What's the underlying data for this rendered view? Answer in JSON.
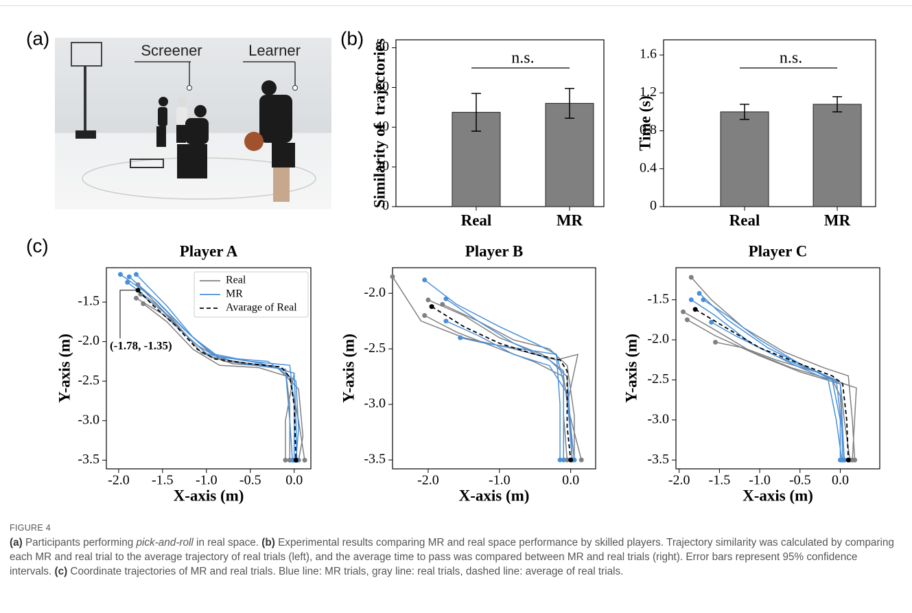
{
  "panel_labels": [
    "(a)",
    "(b)",
    "(c)"
  ],
  "photo": {
    "labels": [
      "Screener",
      "Learner"
    ]
  },
  "chart_data": [
    {
      "type": "bar",
      "ylabel": "Similarity of  trajectories",
      "categories": [
        "Real",
        "MR"
      ],
      "values": [
        47.5,
        52
      ],
      "errors": [
        9.5,
        7.5
      ],
      "color": "#808080",
      "ylim": [
        0,
        84
      ],
      "yticks": [
        0,
        20,
        40,
        60,
        80
      ],
      "annotation": "n.s."
    },
    {
      "type": "bar",
      "ylabel": "Time (s)",
      "categories": [
        "Real",
        "MR"
      ],
      "values": [
        1.0,
        1.08
      ],
      "errors": [
        0.08,
        0.08
      ],
      "color": "#808080",
      "ylim": [
        0,
        1.76
      ],
      "yticks": [
        0,
        0.4,
        0.8,
        1.2,
        1.6
      ],
      "annotation": "n.s."
    },
    {
      "type": "line",
      "title": "Player A",
      "xlabel": "X-axis (m)",
      "ylabel": "Y-axis (m)",
      "xlim": [
        -2.14,
        0.19
      ],
      "ylim": [
        -3.61,
        -1.065
      ],
      "xticks": [
        {
          "value": -2,
          "label": "-2.0"
        },
        -1.5,
        {
          "value": -1,
          "label": "-1.0"
        },
        -0.5,
        {
          "value": 0,
          "label": "0.0"
        }
      ],
      "yticks": [
        -1.5,
        {
          "value": -2,
          "label": "-2.0"
        },
        -2.5,
        {
          "value": -3,
          "label": "-3.0"
        },
        -3.5
      ],
      "legend": true,
      "legend_position": "upper right",
      "annotation": "(-1.78, -1.35)",
      "series": [
        {
          "name": "Real",
          "color": "#808080",
          "line_style": "solid",
          "trials": [
            {
              "x": [
                -1.78,
                -1.5,
                -1.2,
                -0.95,
                -0.5,
                -0.1,
                -0.05,
                -0.05
              ],
              "y": [
                -1.28,
                -1.6,
                -1.95,
                -2.2,
                -2.28,
                -2.35,
                -2.8,
                -3.5
              ]
            },
            {
              "x": [
                -1.72,
                -1.45,
                -1.15,
                -0.85,
                -0.4,
                -0.05,
                0.05,
                0.12
              ],
              "y": [
                -1.52,
                -1.75,
                -2.1,
                -2.3,
                -2.33,
                -2.45,
                -3.0,
                -3.5
              ]
            },
            {
              "x": [
                -1.8,
                -1.5,
                -1.1,
                -0.8,
                -0.3,
                0.0,
                -0.1,
                -0.1
              ],
              "y": [
                -1.45,
                -1.65,
                -2.05,
                -2.25,
                -2.3,
                -2.4,
                -3.0,
                -3.5
              ]
            },
            {
              "x": [
                -1.75,
                -1.4,
                -1.05,
                -0.7,
                -0.2,
                0.05,
                0.1,
                0.05
              ],
              "y": [
                -1.4,
                -1.7,
                -2.15,
                -2.28,
                -2.32,
                -2.6,
                -3.2,
                -3.5
              ]
            }
          ]
        },
        {
          "name": "MR",
          "color": "#4a90d9",
          "line_style": "solid",
          "trials": [
            {
              "x": [
                -1.98,
                -1.6,
                -1.25,
                -0.95,
                -0.5,
                -0.05,
                0.0,
                0.0
              ],
              "y": [
                -1.15,
                -1.45,
                -1.85,
                -2.15,
                -2.25,
                -2.3,
                -2.8,
                -3.5
              ]
            },
            {
              "x": [
                -1.88,
                -1.55,
                -1.2,
                -0.9,
                -0.4,
                0.0,
                0.02,
                0.03
              ],
              "y": [
                -1.18,
                -1.5,
                -1.9,
                -2.18,
                -2.27,
                -2.4,
                -3.0,
                -3.5
              ]
            },
            {
              "x": [
                -1.8,
                -1.45,
                -1.15,
                -0.85,
                -0.3,
                0.02,
                0.05,
                0.02
              ],
              "y": [
                -1.15,
                -1.55,
                -1.95,
                -2.2,
                -2.25,
                -2.5,
                -3.1,
                -3.5
              ]
            },
            {
              "x": [
                -1.9,
                -1.55,
                -1.3,
                -1.0,
                -0.6,
                -0.1,
                -0.05,
                -0.02
              ],
              "y": [
                -1.25,
                -1.55,
                -1.85,
                -2.15,
                -2.28,
                -2.35,
                -3.0,
                -3.5
              ]
            }
          ]
        },
        {
          "name": "Avarage of Real",
          "color": "#000000",
          "line_style": "dashed",
          "trials": [
            {
              "x": [
                -1.78,
                -1.6,
                -1.35,
                -1.1,
                -0.9,
                -0.5,
                -0.15,
                -0.05,
                0.0,
                0.02
              ],
              "y": [
                -1.35,
                -1.55,
                -1.8,
                -2.1,
                -2.22,
                -2.28,
                -2.32,
                -2.45,
                -2.8,
                -3.5
              ]
            }
          ]
        }
      ]
    },
    {
      "type": "line",
      "title": "Player B",
      "xlabel": "X-axis (m)",
      "ylabel": "Y-axis (m)",
      "xlim": [
        -2.5,
        0.35
      ],
      "ylim": [
        -3.58,
        -1.77
      ],
      "xticks": [
        {
          "value": -2,
          "label": "-2.0"
        },
        {
          "value": -1,
          "label": "-1.0"
        },
        {
          "value": 0,
          "label": "0.0"
        }
      ],
      "yticks": [
        {
          "value": -2,
          "label": "-2.0"
        },
        -2.5,
        {
          "value": -3,
          "label": "-3.0"
        },
        -3.5
      ],
      "legend": false,
      "series": [
        {
          "name": "Real",
          "color": "#808080",
          "line_style": "solid",
          "trials": [
            {
              "x": [
                -2.5,
                -2.1,
                -1.5,
                -0.8,
                -0.2,
                0.1,
                -0.05,
                0.15
              ],
              "y": [
                -1.85,
                -2.25,
                -2.4,
                -2.5,
                -2.6,
                -2.55,
                -3.0,
                -3.5
              ]
            },
            {
              "x": [
                -2.0,
                -1.5,
                -1.0,
                -0.4,
                -0.1,
                -0.1,
                -0.05
              ],
              "y": [
                -2.06,
                -2.2,
                -2.4,
                -2.55,
                -2.7,
                -3.1,
                -3.5
              ]
            },
            {
              "x": [
                -2.05,
                -1.6,
                -1.0,
                -0.5,
                -0.1,
                0.0,
                0.02
              ],
              "y": [
                -2.2,
                -2.35,
                -2.5,
                -2.62,
                -2.75,
                -3.2,
                -3.5
              ]
            },
            {
              "x": [
                -1.8,
                -1.3,
                -0.8,
                -0.3,
                -0.05,
                0.05,
                0.05
              ],
              "y": [
                -2.1,
                -2.25,
                -2.42,
                -2.5,
                -2.65,
                -3.1,
                -3.5
              ]
            }
          ]
        },
        {
          "name": "MR",
          "color": "#4a90d9",
          "line_style": "solid",
          "trials": [
            {
              "x": [
                -2.05,
                -1.6,
                -1.0,
                -0.5,
                -0.2,
                -0.15,
                -0.15
              ],
              "y": [
                -1.88,
                -2.1,
                -2.3,
                -2.45,
                -2.55,
                -3.0,
                -3.5
              ]
            },
            {
              "x": [
                -1.75,
                -1.3,
                -0.8,
                -0.3,
                -0.05,
                0.0,
                0.05
              ],
              "y": [
                -2.05,
                -2.25,
                -2.45,
                -2.6,
                -2.75,
                -3.2,
                -3.5
              ]
            },
            {
              "x": [
                -1.55,
                -1.2,
                -0.7,
                -0.2,
                -0.1,
                -0.1
              ],
              "y": [
                -2.4,
                -2.45,
                -2.5,
                -2.55,
                -2.8,
                -3.5
              ]
            },
            {
              "x": [
                -1.75,
                -1.3,
                -0.8,
                -0.3,
                -0.05,
                0.02
              ],
              "y": [
                -2.25,
                -2.38,
                -2.55,
                -2.65,
                -2.9,
                -3.5
              ]
            }
          ]
        },
        {
          "name": "Avarage of Real",
          "color": "#000000",
          "line_style": "dashed",
          "trials": [
            {
              "x": [
                -1.95,
                -1.5,
                -1.0,
                -0.5,
                -0.15,
                -0.05,
                -0.05,
                0.0
              ],
              "y": [
                -2.12,
                -2.3,
                -2.45,
                -2.55,
                -2.6,
                -2.7,
                -3.2,
                -3.5
              ]
            }
          ]
        }
      ]
    },
    {
      "type": "line",
      "title": "Player C",
      "xlabel": "X-axis (m)",
      "ylabel": "Y-axis (m)",
      "xlim": [
        -2.04,
        0.49
      ],
      "ylim": [
        -3.61,
        -1.1
      ],
      "xticks": [
        {
          "value": -2,
          "label": "-2.0"
        },
        -1.5,
        {
          "value": -1,
          "label": "-1.0"
        },
        -0.5,
        {
          "value": 0,
          "label": "0.0"
        }
      ],
      "yticks": [
        -1.5,
        {
          "value": -2,
          "label": "-2.0"
        },
        -2.5,
        {
          "value": -3,
          "label": "-3.0"
        },
        -3.5
      ],
      "legend": false,
      "series": [
        {
          "name": "Real",
          "color": "#808080",
          "line_style": "solid",
          "trials": [
            {
              "x": [
                -1.85,
                -1.6,
                -1.2,
                -0.7,
                -0.2,
                0.1,
                0.15,
                0.18
              ],
              "y": [
                -1.22,
                -1.5,
                -1.85,
                -2.15,
                -2.35,
                -2.45,
                -3.0,
                -3.5
              ]
            },
            {
              "x": [
                -1.95,
                -1.6,
                -1.1,
                -0.6,
                -0.1,
                0.0,
                0.05
              ],
              "y": [
                -1.65,
                -1.85,
                -2.15,
                -2.35,
                -2.5,
                -2.7,
                -3.5
              ]
            },
            {
              "x": [
                -1.55,
                -1.2,
                -0.8,
                -0.3,
                0.05,
                0.2,
                0.15
              ],
              "y": [
                -2.03,
                -2.1,
                -2.25,
                -2.4,
                -2.55,
                -2.6,
                -3.5
              ]
            },
            {
              "x": [
                -1.9,
                -1.55,
                -1.0,
                -0.5,
                0.0,
                0.05,
                0.12
              ],
              "y": [
                -1.75,
                -1.95,
                -2.2,
                -2.4,
                -2.55,
                -3.0,
                -3.5
              ]
            }
          ]
        },
        {
          "name": "MR",
          "color": "#4a90d9",
          "line_style": "solid",
          "trials": [
            {
              "x": [
                -1.7,
                -1.4,
                -1.0,
                -0.5,
                -0.1,
                0.0,
                0.0
              ],
              "y": [
                -1.5,
                -1.7,
                -2.0,
                -2.3,
                -2.5,
                -3.0,
                -3.5
              ]
            },
            {
              "x": [
                -1.75,
                -1.4,
                -0.9,
                -0.4,
                -0.05,
                0.02,
                0.03
              ],
              "y": [
                -1.42,
                -1.75,
                -2.1,
                -2.35,
                -2.5,
                -3.1,
                -3.5
              ]
            },
            {
              "x": [
                -1.6,
                -1.3,
                -0.8,
                -0.3,
                0.0,
                0.05
              ],
              "y": [
                -1.78,
                -1.95,
                -2.2,
                -2.4,
                -2.55,
                -3.5
              ]
            },
            {
              "x": [
                -1.85,
                -1.55,
                -1.1,
                -0.6,
                -0.15,
                -0.05,
                0.02
              ],
              "y": [
                -1.5,
                -1.7,
                -2.05,
                -2.3,
                -2.5,
                -3.0,
                -3.5
              ]
            }
          ]
        },
        {
          "name": "Avarage of Real",
          "color": "#000000",
          "line_style": "dashed",
          "trials": [
            {
              "x": [
                -1.8,
                -1.5,
                -1.0,
                -0.5,
                -0.1,
                0.03,
                0.08,
                0.1
              ],
              "y": [
                -1.62,
                -1.8,
                -2.1,
                -2.3,
                -2.45,
                -2.55,
                -3.0,
                -3.5
              ]
            }
          ]
        }
      ]
    }
  ],
  "caption": {
    "figure_label": "FIGURE 4",
    "segments": [
      {
        "text": "(a)",
        "style": "bold"
      },
      {
        "text": " Participants performing ",
        "style": "normal"
      },
      {
        "text": "pick-and-roll",
        "style": "italic"
      },
      {
        "text": " in real space. ",
        "style": "normal"
      },
      {
        "text": "(b)",
        "style": "bold"
      },
      {
        "text": " Experimental results comparing MR and real space performance by skilled players. Trajectory similarity was calculated by comparing each MR and real trial to the average trajectory of real trials (left), and the average time to pass was compared between MR and real trials (right). Error bars represent 95% confidence intervals. ",
        "style": "normal"
      },
      {
        "text": "(c)",
        "style": "bold"
      },
      {
        "text": " Coordinate trajectories of MR and real trials. Blue line: MR trials, gray line: real trials, dashed line: average of real trials.",
        "style": "normal"
      }
    ]
  }
}
